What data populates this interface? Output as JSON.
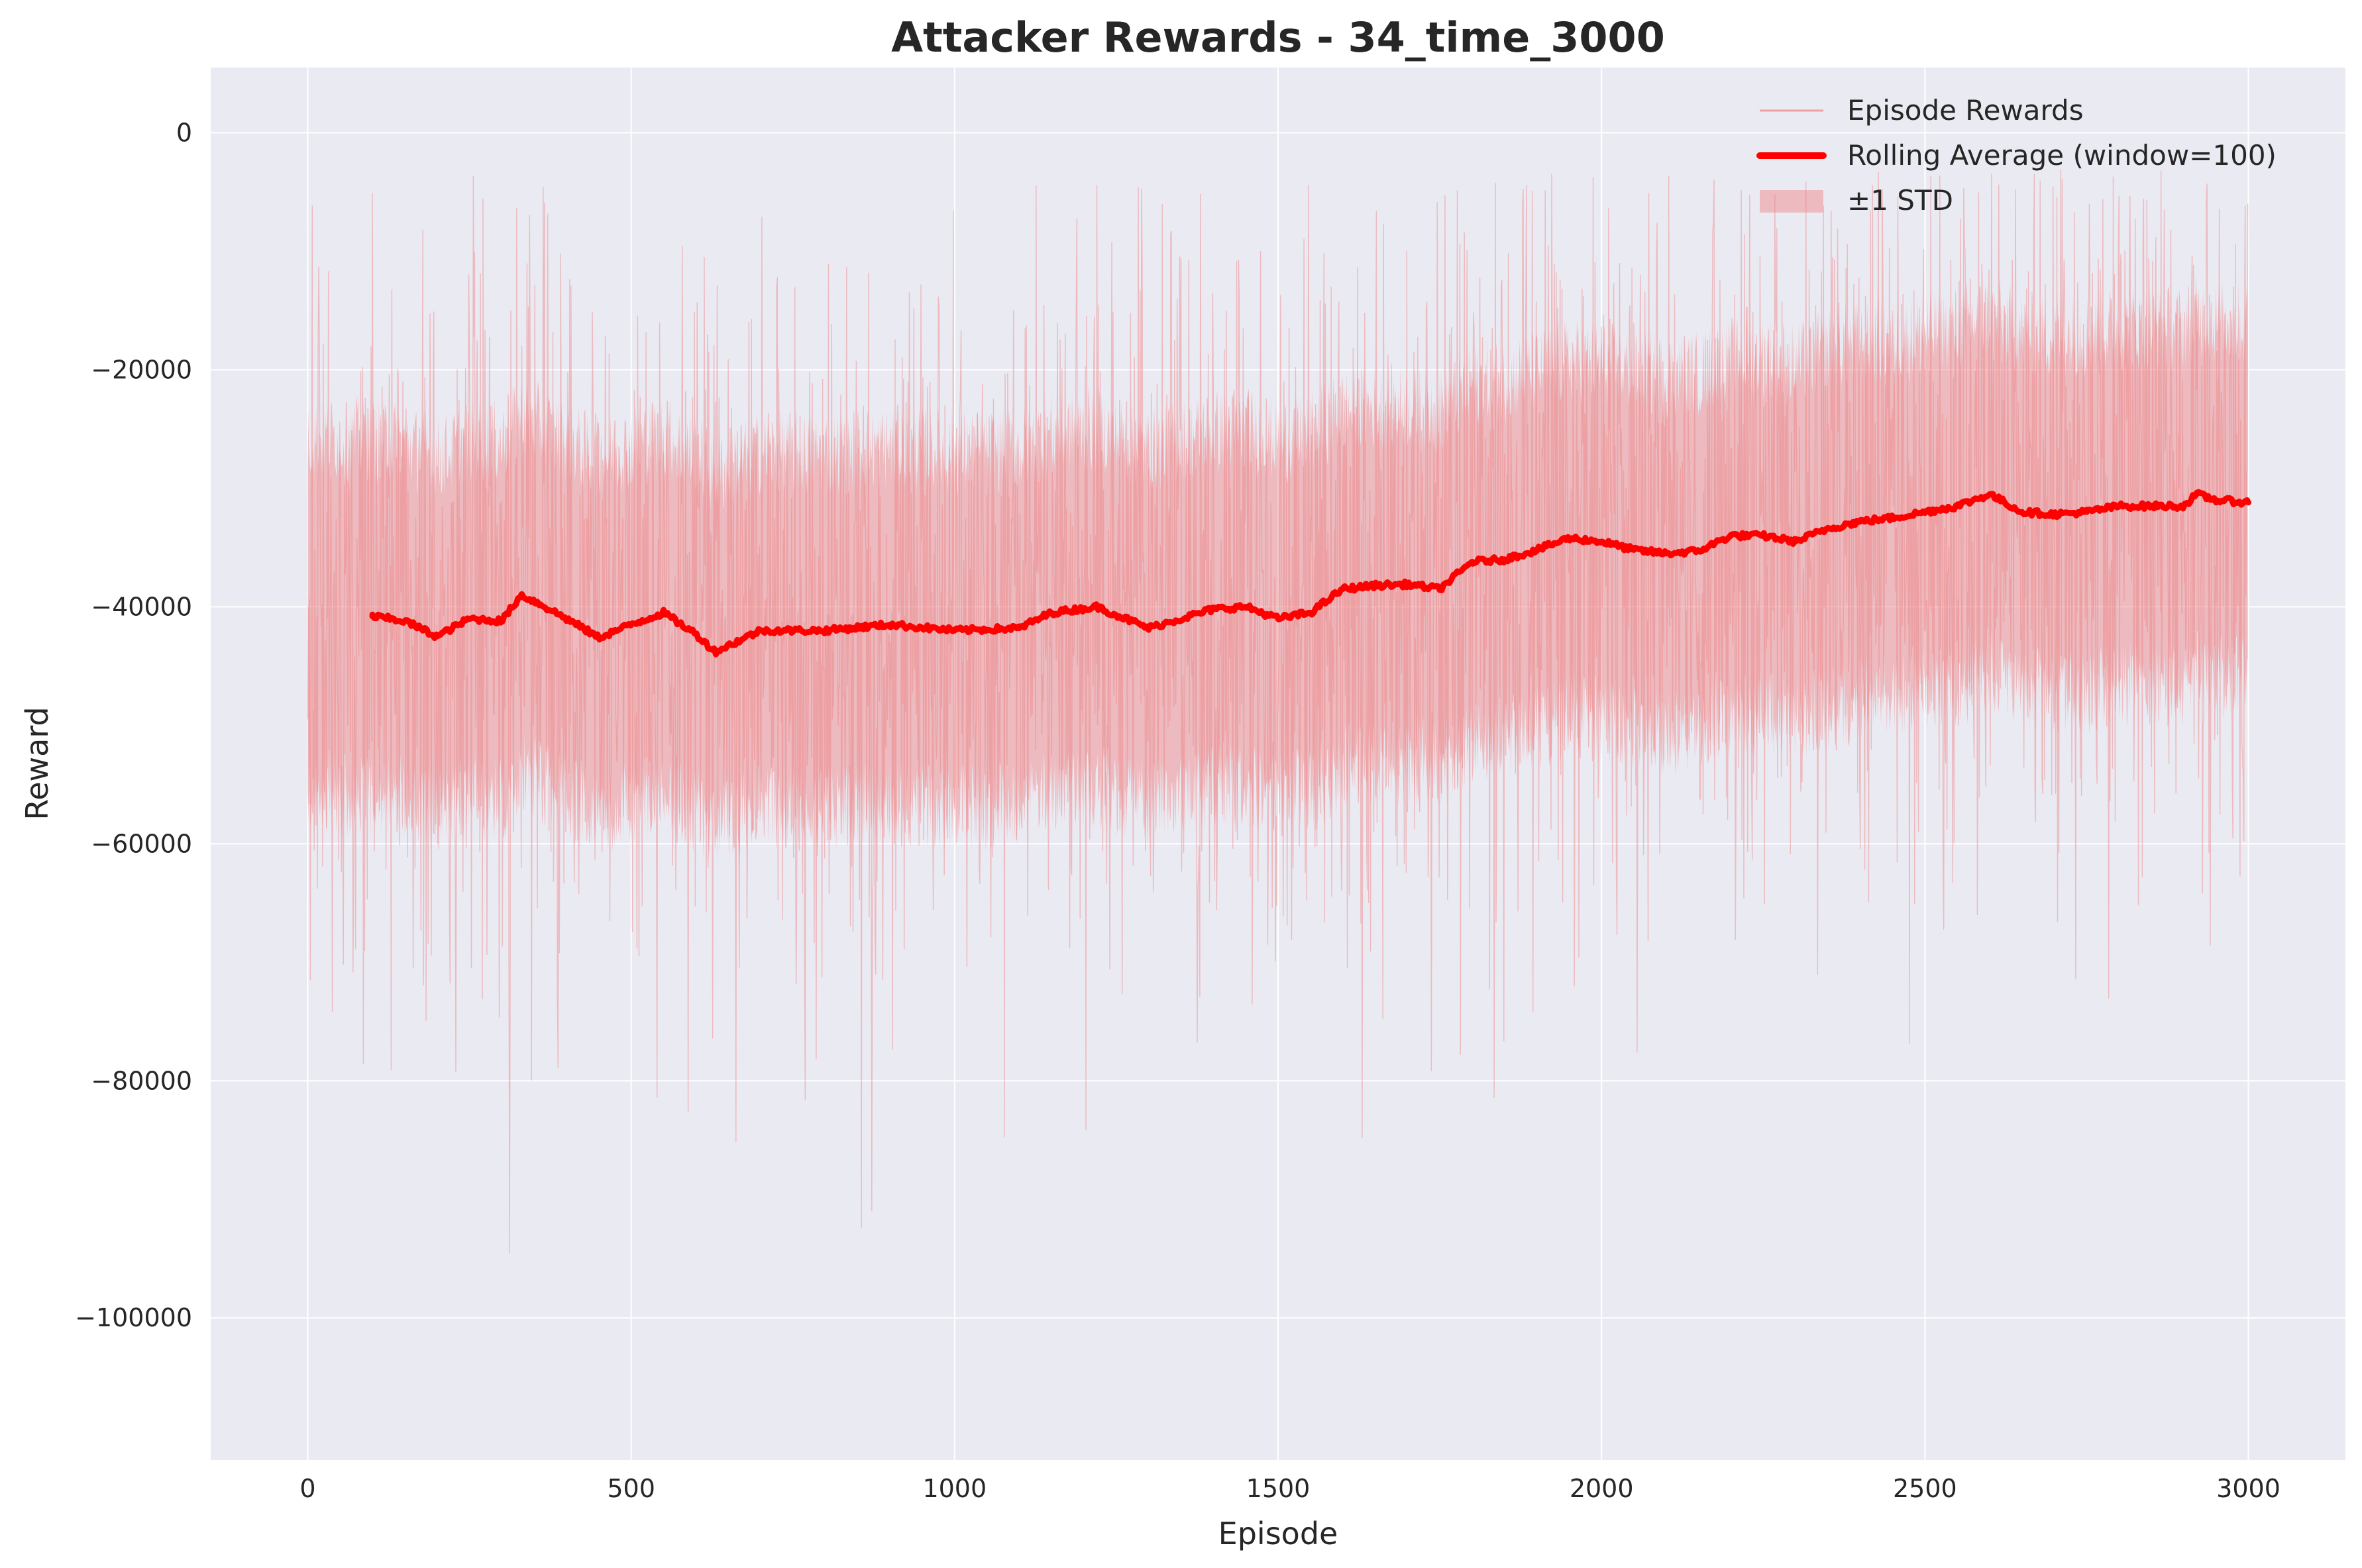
{
  "chart_data": {
    "type": "line",
    "title": "Attacker Rewards - 34_time_3000",
    "xlabel": "Episode",
    "ylabel": "Reward",
    "xlim": [
      -150,
      3150
    ],
    "ylim": [
      -112000,
      5500
    ],
    "xticks": [
      0,
      500,
      1000,
      1500,
      2000,
      2500,
      3000
    ],
    "xtick_labels": [
      "0",
      "500",
      "1000",
      "1500",
      "2000",
      "2500",
      "3000"
    ],
    "yticks": [
      0,
      -20000,
      -40000,
      -60000,
      -80000,
      -100000
    ],
    "ytick_labels": [
      "0",
      "−20000",
      "−40000",
      "−60000",
      "−80000",
      "−100000"
    ],
    "grid": true,
    "legend_position": "top-right",
    "colors": {
      "background": "#eaeaf2",
      "grid": "#ffffff",
      "episode_rewards": "#f08080",
      "rolling_average": "#ff0000",
      "std_band": "#f08080"
    },
    "series": [
      {
        "name": "Episode Rewards",
        "kind": "raw",
        "n_episodes": 3000,
        "approx_mean_start": -42000,
        "approx_mean_end": -31000,
        "approx_std": 15000,
        "approx_min": -107000,
        "approx_max": -3000
      },
      {
        "name": "Rolling Average (window=100)",
        "kind": "rolling",
        "x": [
          100,
          150,
          200,
          250,
          300,
          330,
          360,
          400,
          450,
          500,
          550,
          600,
          630,
          700,
          800,
          900,
          1000,
          1100,
          1150,
          1220,
          1300,
          1400,
          1450,
          1500,
          1550,
          1600,
          1650,
          1700,
          1750,
          1800,
          1850,
          1900,
          1950,
          2000,
          2050,
          2100,
          2150,
          2200,
          2250,
          2300,
          2350,
          2400,
          2450,
          2500,
          2550,
          2600,
          2650,
          2700,
          2750,
          2800,
          2850,
          2900,
          2920,
          2950,
          3000
        ],
        "y": [
          -40800,
          -41200,
          -42500,
          -41000,
          -41200,
          -39000,
          -39800,
          -41000,
          -42600,
          -41500,
          -40500,
          -42300,
          -43800,
          -42000,
          -42000,
          -41500,
          -42000,
          -41800,
          -40500,
          -40000,
          -41800,
          -40200,
          -40000,
          -41000,
          -40500,
          -38500,
          -38200,
          -38100,
          -38500,
          -36200,
          -36000,
          -35200,
          -34200,
          -34500,
          -35200,
          -35500,
          -35300,
          -34000,
          -34000,
          -34500,
          -33400,
          -32800,
          -32500,
          -32000,
          -31500,
          -30500,
          -32000,
          -32200,
          -32000,
          -31500,
          -31500,
          -31500,
          -30500,
          -31000,
          -31200
        ]
      },
      {
        "name": "±1 STD",
        "kind": "band",
        "approx_half_width": 15000
      }
    ],
    "legend": [
      "Episode Rewards",
      "Rolling Average (window=100)",
      "±1 STD"
    ]
  }
}
